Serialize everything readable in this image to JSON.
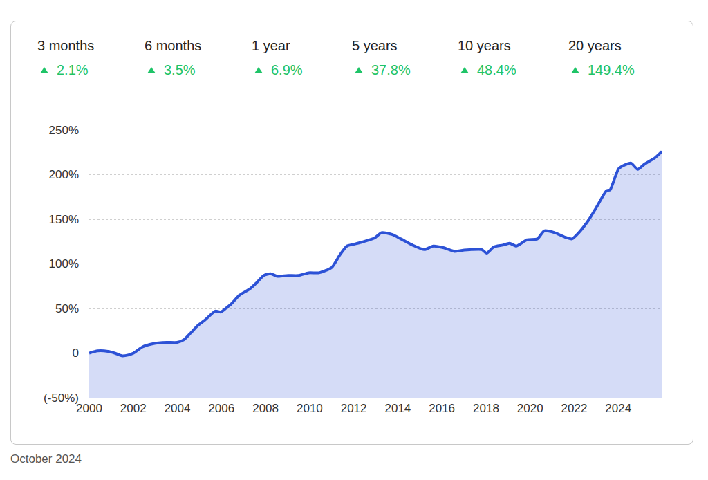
{
  "stats": [
    {
      "label": "3 months",
      "value": "2.1%"
    },
    {
      "label": "6 months",
      "value": "3.5%"
    },
    {
      "label": "1 year",
      "value": "6.9%"
    },
    {
      "label": "5 years",
      "value": "37.8%"
    },
    {
      "label": "10 years",
      "value": "48.4%"
    },
    {
      "label": "20 years",
      "value": "149.4%"
    }
  ],
  "footer": "October 2024",
  "chart_data": {
    "type": "area",
    "color": "#2d52d6",
    "grid": true,
    "x": [
      2000.0,
      2000.38,
      2000.85,
      2001.16,
      2001.48,
      2001.79,
      2002.01,
      2002.42,
      2002.89,
      2003.52,
      2003.99,
      2004.3,
      2004.62,
      2004.93,
      2005.25,
      2005.72,
      2005.97,
      2006.19,
      2006.44,
      2006.82,
      2007.29,
      2007.6,
      2007.92,
      2008.23,
      2008.54,
      2009.02,
      2009.49,
      2009.96,
      2010.43,
      2011.0,
      2011.37,
      2011.69,
      2012.0,
      2012.32,
      2012.95,
      2013.26,
      2013.73,
      2014.14,
      2014.67,
      2015.21,
      2015.61,
      2016.09,
      2016.56,
      2016.87,
      2017.34,
      2017.81,
      2018.03,
      2018.35,
      2018.76,
      2019.07,
      2019.38,
      2019.86,
      2020.33,
      2020.64,
      2021.11,
      2021.58,
      2021.9,
      2022.21,
      2022.68,
      2023.0,
      2023.47,
      2023.63,
      2024.03,
      2024.57,
      2024.88,
      2025.2,
      2025.67,
      2025.98
    ],
    "values": [
      0,
      2.5,
      2,
      0,
      -3,
      -2,
      0,
      7,
      10.5,
      12,
      12,
      15,
      23,
      31,
      37,
      47,
      46,
      50,
      55,
      65,
      72,
      79,
      87,
      89,
      86,
      87,
      87,
      90,
      90,
      96,
      110,
      120,
      122,
      124,
      129,
      135,
      133,
      128,
      121,
      116,
      120,
      118,
      114,
      115,
      116,
      116,
      112,
      119,
      121,
      123,
      120,
      127,
      128,
      137,
      135,
      130,
      128,
      135,
      150,
      163,
      182,
      183,
      207,
      213,
      206,
      212,
      219,
      226
    ],
    "xlim": [
      2000,
      2026
    ],
    "xticks": [
      2000,
      2002,
      2004,
      2006,
      2008,
      2010,
      2012,
      2014,
      2016,
      2018,
      2020,
      2022,
      2024
    ],
    "ylim": [
      -50,
      250
    ],
    "yticks": [
      {
        "value": -50,
        "label": "(-50%)"
      },
      0,
      {
        "value": 50,
        "label": "50%"
      },
      {
        "value": 100,
        "label": "100%"
      },
      {
        "value": 150,
        "label": "150%"
      },
      {
        "value": 200,
        "label": "200%"
      },
      {
        "value": 250,
        "label": "250%"
      }
    ]
  }
}
